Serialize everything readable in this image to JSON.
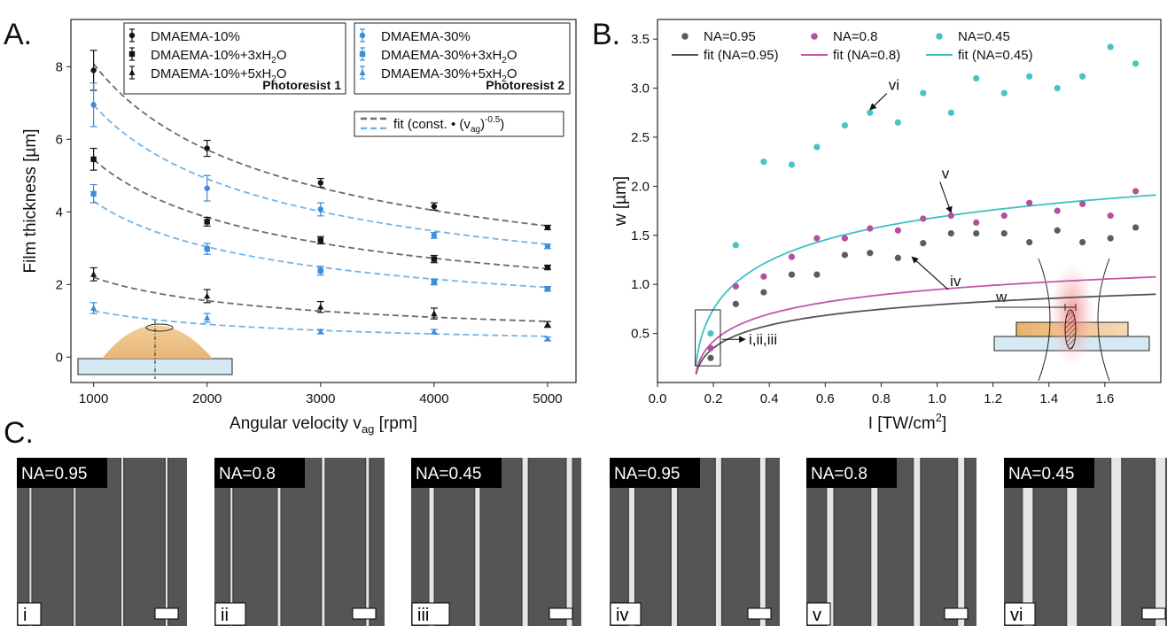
{
  "panel_labels": {
    "a": "A.",
    "b": "B.",
    "c": "C."
  },
  "colors": {
    "black": "#141414",
    "blue": "#3d8bd9",
    "fit_dark": "#6b6b6b",
    "fit_blue": "#74b4e8",
    "na095": "#5c5c5c",
    "na08": "#b3509c",
    "na045": "#47c3c3",
    "fit095": "#555555",
    "fit08": "#c155ad",
    "fit045": "#3ec0c3"
  },
  "chart_data": [
    {
      "type": "scatter",
      "xlabel": "Angular velocity v",
      "xlabel_sub": "ag",
      "xlabel_unit": " [rpm]",
      "ylabel": "Film thickness [µm]",
      "xlim": [
        800,
        5250
      ],
      "ylim": [
        -0.7,
        9.3
      ],
      "xticks": [
        1000,
        2000,
        3000,
        4000,
        5000
      ],
      "yticks": [
        0,
        2,
        4,
        6,
        8
      ],
      "grid": false,
      "legend": {
        "group1": {
          "entries": [
            {
              "marker": "circle",
              "label": "DMAEMA-10%"
            },
            {
              "marker": "square",
              "label": "DMAEMA-10%+3xH",
              "sub": "2",
              "tail": "O"
            },
            {
              "marker": "triangle",
              "label": "DMAEMA-10%+5xH",
              "sub": "2",
              "tail": "O"
            }
          ],
          "title": "Photoresist 1"
        },
        "group2": {
          "entries": [
            {
              "marker": "circle",
              "label": "DMAEMA-30%"
            },
            {
              "marker": "square",
              "label": "DMAEMA-30%+3xH",
              "sub": "2",
              "tail": "O"
            },
            {
              "marker": "triangle",
              "label": "DMAEMA-30%+5xH",
              "sub": "2",
              "tail": "O"
            }
          ],
          "title": "Photoresist 2"
        },
        "fit": {
          "label": "fit (const. • (v",
          "sub": "ag",
          "tail": ")",
          "sup": "-0.5",
          "end": ")"
        }
      },
      "x": [
        1000,
        2000,
        3000,
        4000,
        5000
      ],
      "series": [
        {
          "name": "DMAEMA-10%",
          "color": "black",
          "marker": "circle",
          "values": [
            7.9,
            5.75,
            4.8,
            4.15,
            3.57
          ],
          "errors": [
            0.55,
            0.22,
            0.12,
            0.1,
            0.06
          ],
          "fit_k": 255.5
        },
        {
          "name": "DMAEMA-10%+3xH2O",
          "color": "black",
          "marker": "square",
          "values": [
            5.45,
            3.73,
            3.22,
            2.7,
            2.47
          ],
          "errors": [
            0.3,
            0.12,
            0.1,
            0.1,
            0.06
          ],
          "fit_k": 172.1
        },
        {
          "name": "DMAEMA-10%+5xH2O",
          "color": "black",
          "marker": "triangle",
          "values": [
            2.28,
            1.68,
            1.38,
            1.2,
            0.9
          ],
          "errors": [
            0.18,
            0.18,
            0.15,
            0.15,
            0.08
          ],
          "fit_k": 69.5
        },
        {
          "name": "DMAEMA-30%",
          "color": "blue",
          "marker": "circle",
          "values": [
            6.95,
            4.65,
            4.07,
            3.35,
            3.05
          ],
          "errors": [
            0.6,
            0.35,
            0.18,
            0.08,
            0.06
          ],
          "fit_k": 219.6
        },
        {
          "name": "DMAEMA-30%+3xH2O",
          "color": "blue",
          "marker": "square",
          "values": [
            4.5,
            2.98,
            2.38,
            2.07,
            1.88
          ],
          "errors": [
            0.25,
            0.15,
            0.12,
            0.08,
            0.06
          ],
          "fit_k": 135.8
        },
        {
          "name": "DMAEMA-30%+5xH2O",
          "color": "blue",
          "marker": "triangle",
          "values": [
            1.35,
            1.08,
            0.7,
            0.7,
            0.5
          ],
          "errors": [
            0.15,
            0.12,
            0.06,
            0.06,
            0.05
          ],
          "fit_k": 40.4
        }
      ]
    },
    {
      "type": "scatter",
      "xlabel": "I [TW/cm",
      "xlabel_sup": "2",
      "xlabel_end": "]",
      "ylabel": "w [µm]",
      "xlim": [
        0.0,
        1.8
      ],
      "ylim": [
        0.0,
        3.7
      ],
      "xticks": [
        0.0,
        0.2,
        0.4,
        0.6,
        0.8,
        1.0,
        1.2,
        1.4,
        1.6
      ],
      "yticks": [
        0.5,
        1.0,
        1.5,
        2.0,
        2.5,
        3.0,
        3.5
      ],
      "grid": false,
      "legend_position": "top",
      "series": [
        {
          "name": "NA=0.95",
          "fit_name": "fit (NA=0.95)",
          "color": "na095",
          "fit_color": "fit095",
          "fit_a": 0.56,
          "x": [
            0.19,
            0.28,
            0.38,
            0.48,
            0.57,
            0.67,
            0.76,
            0.86,
            0.95,
            1.05,
            1.14,
            1.24,
            1.33,
            1.43,
            1.52,
            1.62,
            1.71
          ],
          "y": [
            0.25,
            0.8,
            0.92,
            1.1,
            1.1,
            1.3,
            1.32,
            1.27,
            1.42,
            1.52,
            1.52,
            1.52,
            1.43,
            1.55,
            1.43,
            1.47,
            1.58
          ]
        },
        {
          "name": "NA=0.8",
          "fit_name": "fit (NA=0.8)",
          "color": "na08",
          "fit_color": "fit08",
          "fit_a": 0.67,
          "x": [
            0.19,
            0.28,
            0.38,
            0.48,
            0.57,
            0.67,
            0.76,
            0.86,
            0.95,
            1.05,
            1.14,
            1.24,
            1.33,
            1.43,
            1.52,
            1.62,
            1.71
          ],
          "y": [
            0.35,
            0.98,
            1.08,
            1.28,
            1.47,
            1.47,
            1.57,
            1.55,
            1.67,
            1.7,
            1.63,
            1.7,
            1.83,
            1.75,
            1.82,
            1.7,
            1.95
          ]
        },
        {
          "name": "NA=0.45",
          "fit_name": "fit (NA=0.45)",
          "color": "na045",
          "fit_color": "fit045",
          "fit_a": 1.19,
          "x": [
            0.19,
            0.28,
            0.38,
            0.48,
            0.57,
            0.67,
            0.76,
            0.86,
            0.95,
            1.05,
            1.14,
            1.24,
            1.33,
            1.43,
            1.52,
            1.62,
            1.71
          ],
          "y": [
            0.5,
            1.4,
            2.25,
            2.22,
            2.4,
            2.62,
            2.75,
            2.65,
            2.95,
            2.75,
            3.1,
            2.95,
            3.12,
            3.0,
            3.12,
            3.42,
            3.25
          ]
        }
      ],
      "fit_threshold": 0.135,
      "annotations": [
        {
          "text": "vi",
          "x": 0.82,
          "y": 3.0,
          "target_x": 0.76,
          "target_y": 2.78
        },
        {
          "text": "v",
          "x": 1.01,
          "y": 2.1,
          "target_x": 1.05,
          "target_y": 1.73
        },
        {
          "text": "iv",
          "x": 1.04,
          "y": 1.0,
          "target_x": 0.91,
          "target_y": 1.28
        },
        {
          "text": "i,ii,iii",
          "x": 0.26,
          "y": 0.44
        }
      ],
      "inset_label": "w"
    }
  ],
  "micrographs": [
    {
      "na_label": "NA=0.95",
      "id_label": "i",
      "lines": [
        0.08,
        0.34,
        0.62,
        0.88
      ],
      "widths": [
        2,
        2,
        2,
        2
      ]
    },
    {
      "na_label": "NA=0.8",
      "id_label": "ii",
      "lines": [
        0.1,
        0.38,
        0.64,
        0.9
      ],
      "widths": [
        2,
        3,
        3,
        3
      ]
    },
    {
      "na_label": "NA=0.45",
      "id_label": "iii",
      "lines": [
        0.12,
        0.39,
        0.67,
        0.93
      ],
      "widths": [
        5,
        5,
        6,
        6
      ]
    },
    {
      "na_label": "NA=0.95",
      "id_label": "iv",
      "lines": [
        0.13,
        0.38,
        0.64,
        0.9
      ],
      "widths": [
        6,
        6,
        6,
        6
      ]
    },
    {
      "na_label": "NA=0.8",
      "id_label": "v",
      "lines": [
        0.14,
        0.4,
        0.65,
        0.91
      ],
      "widths": [
        7,
        7,
        7,
        7
      ]
    },
    {
      "na_label": "NA=0.45",
      "id_label": "vi",
      "lines": [
        0.14,
        0.4,
        0.66,
        0.92
      ],
      "widths": [
        11,
        11,
        11,
        11
      ]
    }
  ]
}
